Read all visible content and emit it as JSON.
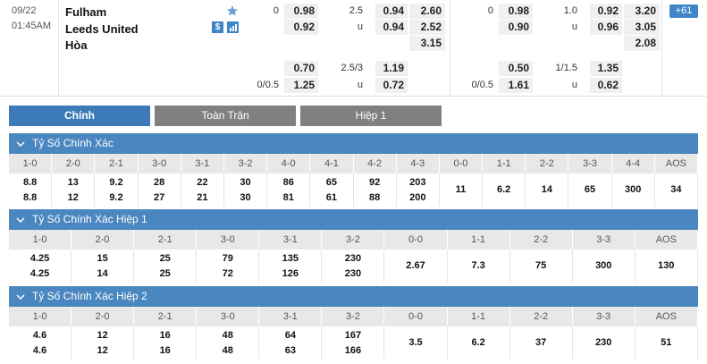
{
  "match": {
    "date": "09/22",
    "time": "01:45AM",
    "home": "Fulham",
    "away": "Leeds United",
    "draw": "Hòa",
    "more": "+61",
    "full_time": {
      "handicap": {
        "line": "0",
        "home": "0.98",
        "away": "0.92"
      },
      "over_under": {
        "line": "2.5",
        "over": "0.94",
        "under_mark": "u",
        "under": "0.94"
      },
      "x12": {
        "home": "2.60",
        "away": "2.52",
        "draw": "3.15"
      },
      "handicap_alt": {
        "home": "0.70",
        "line": "0/0.5",
        "away": "1.25"
      },
      "over_under_alt": {
        "line": "2.5/3",
        "over": "1.19",
        "under_mark": "u",
        "under": "0.72"
      }
    },
    "first_half": {
      "handicap": {
        "line": "0",
        "home": "0.98",
        "away": "0.90"
      },
      "over_under": {
        "line": "1.0",
        "over": "0.92",
        "under_mark": "u",
        "under": "0.96"
      },
      "x12": {
        "home": "3.20",
        "away": "3.05",
        "draw": "2.08"
      },
      "handicap_alt": {
        "home": "0.50",
        "line": "0/0.5",
        "away": "1.61"
      },
      "over_under_alt": {
        "line": "1/1.5",
        "over": "1.35",
        "under_mark": "u",
        "under": "0.62"
      }
    }
  },
  "tabs": [
    "Chính",
    "Toàn Trận",
    "Hiệp 1"
  ],
  "sections": [
    {
      "title": "Tỷ Số Chính Xác",
      "headers": [
        "1-0",
        "2-0",
        "2-1",
        "3-0",
        "3-1",
        "3-2",
        "4-0",
        "4-1",
        "4-2",
        "4-3",
        "0-0",
        "1-1",
        "2-2",
        "3-3",
        "4-4",
        "AOS"
      ],
      "values": [
        [
          "8.8",
          "8.8"
        ],
        [
          "13",
          "12"
        ],
        [
          "9.2",
          "9.2"
        ],
        [
          "28",
          "27"
        ],
        [
          "22",
          "21"
        ],
        [
          "30",
          "30"
        ],
        [
          "86",
          "81"
        ],
        [
          "65",
          "61"
        ],
        [
          "92",
          "88"
        ],
        [
          "203",
          "200"
        ],
        [
          "11"
        ],
        [
          "6.2"
        ],
        [
          "14"
        ],
        [
          "65"
        ],
        [
          "300"
        ],
        [
          "34"
        ]
      ]
    },
    {
      "title": "Tỷ Số Chính Xác Hiệp 1",
      "headers": [
        "1-0",
        "2-0",
        "2-1",
        "3-0",
        "3-1",
        "3-2",
        "0-0",
        "1-1",
        "2-2",
        "3-3",
        "AOS"
      ],
      "values": [
        [
          "4.25",
          "4.25"
        ],
        [
          "15",
          "14"
        ],
        [
          "25",
          "25"
        ],
        [
          "79",
          "72"
        ],
        [
          "135",
          "126"
        ],
        [
          "230",
          "230"
        ],
        [
          "2.67"
        ],
        [
          "7.3"
        ],
        [
          "75"
        ],
        [
          "300"
        ],
        [
          "130"
        ]
      ]
    },
    {
      "title": "Tỷ Số Chính Xác Hiệp 2",
      "headers": [
        "1-0",
        "2-0",
        "2-1",
        "3-0",
        "3-1",
        "3-2",
        "0-0",
        "1-1",
        "2-2",
        "3-3",
        "AOS"
      ],
      "values": [
        [
          "4.6",
          "4.6"
        ],
        [
          "12",
          "12"
        ],
        [
          "16",
          "16"
        ],
        [
          "48",
          "48"
        ],
        [
          "64",
          "63"
        ],
        [
          "167",
          "166"
        ],
        [
          "3.5"
        ],
        [
          "6.2"
        ],
        [
          "37"
        ],
        [
          "230"
        ],
        [
          "51"
        ]
      ]
    }
  ]
}
